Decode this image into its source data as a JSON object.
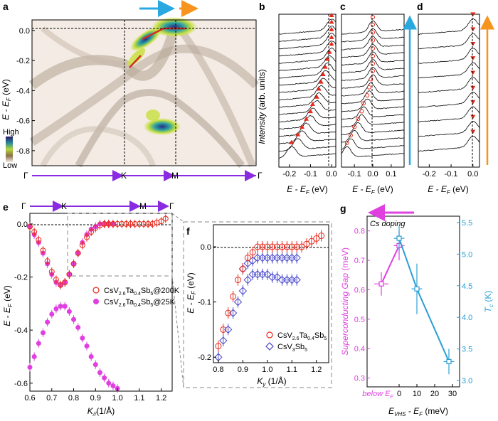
{
  "panels": {
    "a": "a",
    "b": "b",
    "c": "c",
    "d": "d",
    "e": "e",
    "f": "f",
    "g": "g"
  },
  "colors": {
    "arrow_blue": "#29a9e0",
    "arrow_orange": "#f7941d",
    "path_purple": "#8a2be2",
    "red": "#e8291c",
    "magenta": "#e040e0",
    "cyan": "#2a9fd6",
    "blue_diamond": "#4a4acc"
  },
  "chart_data": [
    {
      "panel": "a",
      "type": "heatmap",
      "ylabel": "E - E_F (eV)",
      "yticks": [
        "0.0",
        "-0.2",
        "-0.4",
        "-0.6",
        "-0.8"
      ],
      "ylim": [
        -0.9,
        0.07
      ],
      "path_labels": [
        "Γ",
        "K",
        "M",
        "Γ"
      ],
      "colorbar": {
        "high": "High",
        "low": "Low"
      }
    },
    {
      "panel": "b",
      "type": "line",
      "ylabel": "Intensity (arb. units)",
      "xlabel": "E - E_F (eV)",
      "xticks": [
        "-0.2",
        "-0.1",
        "0.0"
      ],
      "xlim": [
        -0.25,
        0.02
      ],
      "n_curves": 18,
      "peak_positions": [
        0.0,
        0.0,
        0.0,
        0.0,
        0.0,
        -0.01,
        -0.02,
        -0.03,
        -0.04,
        -0.05,
        -0.06,
        -0.07,
        -0.09,
        -0.1,
        -0.12,
        -0.14,
        -0.16,
        -0.19
      ]
    },
    {
      "panel": "c",
      "type": "line",
      "xlabel": "E - E_F (eV)",
      "xticks": [
        "-0.1",
        "0.0",
        "0.1"
      ],
      "xlim": [
        -0.17,
        0.17
      ],
      "n_curves": 17,
      "peak_positions": [
        0.0,
        0.0,
        0.0,
        0.0,
        0.0,
        0.0,
        0.0,
        0.0,
        -0.01,
        -0.02,
        -0.03,
        -0.05,
        -0.06,
        -0.08,
        -0.1,
        -0.12,
        -0.14
      ]
    },
    {
      "panel": "d",
      "type": "line",
      "xlabel": "E - E_F (eV)",
      "xticks": [
        "-0.2",
        "-0.1",
        "0.0"
      ],
      "xlim": [
        -0.25,
        0.03
      ],
      "n_curves": 9,
      "peak_positions": [
        0.0,
        0.0,
        0.0,
        0.0,
        0.0,
        0.0,
        0.0,
        0.0,
        0.0
      ]
    },
    {
      "panel": "e",
      "type": "scatter",
      "xlabel": "K_// (1/Å)",
      "ylabel": "E - E_F (eV)",
      "xlim": [
        0.6,
        1.25
      ],
      "ylim": [
        -0.63,
        0.04
      ],
      "xticks": [
        "0.6",
        "0.7",
        "0.8",
        "0.9",
        "1.0",
        "1.1",
        "1.2"
      ],
      "yticks": [
        "0.0",
        "-0.2",
        "-0.4",
        "-0.6"
      ],
      "path_labels": [
        "Γ",
        "K",
        "M",
        "Γ"
      ],
      "series": [
        {
          "name": "CsV2.6Ta0.4Sb5@200K",
          "name_html": [
            "CsV",
            "2.6",
            "Ta",
            "0.4",
            "Sb",
            "5",
            "@200K"
          ],
          "x": [
            0.6,
            0.62,
            0.64,
            0.66,
            0.68,
            0.7,
            0.72,
            0.74,
            0.76,
            0.78,
            0.8,
            0.82,
            0.84,
            0.86,
            0.88,
            0.9,
            0.92,
            0.94,
            0.96,
            0.98,
            1.0,
            1.02,
            1.04,
            1.06,
            1.08,
            1.1,
            1.12,
            1.14,
            1.16,
            1.18,
            1.2,
            1.22
          ],
          "y": [
            -0.01,
            -0.03,
            -0.06,
            -0.1,
            -0.14,
            -0.18,
            -0.21,
            -0.23,
            -0.22,
            -0.19,
            -0.15,
            -0.11,
            -0.08,
            -0.05,
            -0.03,
            -0.015,
            -0.005,
            0.0,
            0.0,
            0.0,
            0.0,
            0.0,
            0.0,
            0.0,
            0.0,
            0.0,
            0.0,
            0.0,
            0.0,
            0.005,
            0.01,
            0.02
          ]
        },
        {
          "name": "CsV2.6Ta0.4Sb5@25K",
          "name_html": [
            "CsV",
            "2.6",
            "Ta",
            "0.4",
            "Sb",
            "5",
            "@25K"
          ],
          "x": [
            0.6,
            0.62,
            0.64,
            0.66,
            0.68,
            0.7,
            0.72,
            0.74,
            0.76,
            0.78,
            0.8,
            0.82,
            0.84,
            0.86,
            0.88,
            0.9,
            0.92,
            0.94,
            0.96,
            0.98,
            0.6,
            0.62,
            0.64,
            0.66,
            0.68,
            0.7,
            0.72,
            0.74,
            0.76,
            0.78,
            0.8,
            0.82,
            0.84,
            0.86,
            0.88,
            0.9,
            0.92,
            0.94,
            0.96,
            0.98,
            1.0
          ],
          "y": [
            -0.01,
            -0.04,
            -0.07,
            -0.11,
            -0.15,
            -0.19,
            -0.22,
            -0.23,
            -0.22,
            -0.19,
            -0.15,
            -0.11,
            -0.07,
            -0.04,
            -0.02,
            -0.01,
            0.0,
            0.0,
            0.0,
            0.0,
            -0.54,
            -0.5,
            -0.45,
            -0.41,
            -0.37,
            -0.34,
            -0.32,
            -0.31,
            -0.31,
            -0.33,
            -0.36,
            -0.39,
            -0.43,
            -0.46,
            -0.5,
            -0.53,
            -0.56,
            -0.58,
            -0.6,
            -0.61,
            -0.62
          ]
        }
      ]
    },
    {
      "panel": "f",
      "type": "scatter",
      "xlabel": "K_y (1/Å)",
      "ylabel": "E - E_F (eV)",
      "xlim": [
        0.78,
        1.25
      ],
      "ylim": [
        -0.21,
        0.04
      ],
      "xticks": [
        "0.8",
        "0.9",
        "1.0",
        "1.1",
        "1.2"
      ],
      "yticks": [
        "0.0",
        "-0.1",
        "-0.2"
      ],
      "series": [
        {
          "name": "CsV2.6Ta0.4Sb5",
          "name_html": [
            "CsV",
            "2.6",
            "Ta",
            "0.4",
            "Sb",
            "5"
          ],
          "x": [
            0.8,
            0.82,
            0.84,
            0.86,
            0.88,
            0.9,
            0.92,
            0.94,
            0.96,
            0.98,
            1.0,
            1.02,
            1.04,
            1.06,
            1.08,
            1.1,
            1.12,
            1.14,
            1.16,
            1.18,
            1.2,
            1.22
          ],
          "y": [
            -0.18,
            -0.15,
            -0.12,
            -0.09,
            -0.06,
            -0.04,
            -0.02,
            -0.01,
            0.0,
            0.0,
            0.0,
            0.0,
            0.0,
            0.0,
            0.0,
            0.0,
            0.0,
            0.0,
            0.005,
            0.01,
            0.015,
            0.02
          ]
        },
        {
          "name": "CsV3Sb5",
          "name_html": [
            "CsV",
            "3",
            "Sb",
            "5"
          ],
          "x": [
            0.8,
            0.82,
            0.84,
            0.86,
            0.88,
            0.9,
            0.92,
            0.94,
            0.96,
            0.98,
            1.0,
            1.02,
            1.04,
            1.06,
            1.08,
            1.1,
            1.12,
            0.9,
            0.92,
            0.94,
            0.96,
            0.98,
            1.0,
            1.02,
            1.04,
            1.06,
            1.08,
            1.1,
            1.12
          ],
          "y": [
            -0.2,
            -0.17,
            -0.15,
            -0.12,
            -0.1,
            -0.08,
            -0.06,
            -0.05,
            -0.05,
            -0.05,
            -0.05,
            -0.055,
            -0.055,
            -0.06,
            -0.06,
            -0.06,
            -0.06,
            -0.04,
            -0.03,
            -0.025,
            -0.02,
            -0.02,
            -0.02,
            -0.02,
            -0.02,
            -0.02,
            -0.02,
            -0.02,
            -0.02
          ]
        }
      ]
    },
    {
      "panel": "g",
      "type": "scatter",
      "xlabel": "E_VHS - E_F (meV)",
      "xticks": [
        "below E_F",
        "0",
        "10",
        "20",
        "30"
      ],
      "ylabel_left": "Superconducting Gap (meV)",
      "ylabel_right": "T_c (K)",
      "yticks_left": [
        "0.3",
        "0.4",
        "0.5",
        "0.6",
        "0.7",
        "0.8"
      ],
      "yticks_right": [
        "3.0",
        "3.5",
        "4.0",
        "4.5",
        "5.0",
        "5.5"
      ],
      "ylim_left": [
        0.27,
        0.85
      ],
      "ylim_right": [
        2.9,
        5.6
      ],
      "annotation": "Cs doping",
      "series": [
        {
          "name": "Superconducting Gap",
          "x": [
            -10,
            0
          ],
          "y": [
            0.62,
            0.75
          ],
          "xerr": [
            4,
            3
          ],
          "yerr": [
            0.04,
            0.05
          ]
        },
        {
          "name": "Tc",
          "x": [
            0,
            10,
            28
          ],
          "y": [
            5.25,
            4.45,
            3.3
          ],
          "xerr": [
            3,
            3,
            3
          ],
          "yerr": [
            0.2,
            0.4,
            0.2
          ]
        }
      ]
    }
  ]
}
